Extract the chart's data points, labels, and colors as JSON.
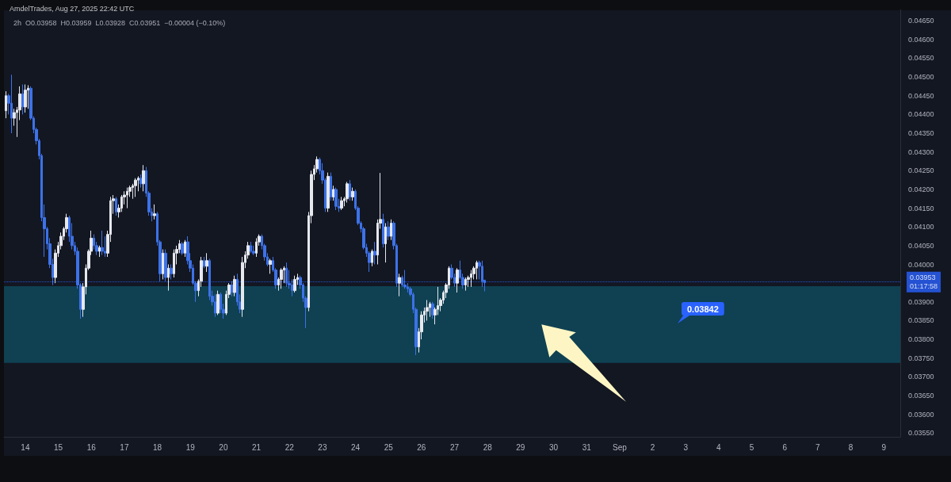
{
  "chart_data": {
    "type": "candlestick",
    "title": "AmdelTrades, Aug 27, 2025 22:42 UTC",
    "subtitle": "2h  O0.03958  H0.03959  L0.03928  C0.03951  −0.00004 (−0.10%)",
    "x": [
      "2025-08-13T10:00",
      "2025-08-13T12:00",
      "2025-08-13T14:00",
      "2025-08-13T16:00",
      "2025-08-13T18:00",
      "2025-08-13T20:00",
      "2025-08-13T22:00",
      "2025-08-14T00:00",
      "2025-08-14T02:00",
      "2025-08-14T04:00",
      "2025-08-14T06:00",
      "2025-08-14T08:00",
      "2025-08-14T10:00",
      "2025-08-14T12:00",
      "2025-08-14T14:00",
      "2025-08-14T16:00",
      "2025-08-14T18:00",
      "2025-08-14T20:00",
      "2025-08-14T22:00",
      "2025-08-15T00:00",
      "2025-08-15T02:00",
      "2025-08-15T04:00",
      "2025-08-15T06:00",
      "2025-08-15T08:00",
      "2025-08-15T10:00",
      "2025-08-15T12:00",
      "2025-08-15T14:00",
      "2025-08-15T16:00",
      "2025-08-15T18:00",
      "2025-08-15T20:00",
      "2025-08-15T22:00",
      "2025-08-16T00:00",
      "2025-08-16T02:00",
      "2025-08-16T04:00",
      "2025-08-16T06:00",
      "2025-08-16T08:00",
      "2025-08-16T10:00",
      "2025-08-16T12:00",
      "2025-08-16T14:00",
      "2025-08-16T16:00",
      "2025-08-16T18:00",
      "2025-08-16T20:00",
      "2025-08-16T22:00",
      "2025-08-17T00:00",
      "2025-08-17T02:00",
      "2025-08-17T04:00",
      "2025-08-17T06:00",
      "2025-08-17T08:00",
      "2025-08-17T10:00",
      "2025-08-17T12:00",
      "2025-08-17T14:00",
      "2025-08-17T16:00",
      "2025-08-17T18:00",
      "2025-08-17T20:00",
      "2025-08-17T22:00",
      "2025-08-18T00:00",
      "2025-08-18T02:00",
      "2025-08-18T04:00",
      "2025-08-18T06:00",
      "2025-08-18T08:00",
      "2025-08-18T10:00",
      "2025-08-18T12:00",
      "2025-08-18T14:00",
      "2025-08-18T16:00",
      "2025-08-18T18:00",
      "2025-08-18T20:00",
      "2025-08-18T22:00",
      "2025-08-19T00:00",
      "2025-08-19T02:00",
      "2025-08-19T04:00",
      "2025-08-19T06:00",
      "2025-08-19T08:00",
      "2025-08-19T10:00",
      "2025-08-19T12:00",
      "2025-08-19T14:00",
      "2025-08-19T16:00",
      "2025-08-19T18:00",
      "2025-08-19T20:00",
      "2025-08-19T22:00",
      "2025-08-20T00:00",
      "2025-08-20T02:00",
      "2025-08-20T04:00",
      "2025-08-20T06:00",
      "2025-08-20T08:00",
      "2025-08-20T10:00",
      "2025-08-20T12:00",
      "2025-08-20T14:00",
      "2025-08-20T16:00",
      "2025-08-20T18:00",
      "2025-08-20T20:00",
      "2025-08-20T22:00",
      "2025-08-21T00:00",
      "2025-08-21T02:00",
      "2025-08-21T04:00",
      "2025-08-21T06:00",
      "2025-08-21T08:00",
      "2025-08-21T10:00",
      "2025-08-21T12:00",
      "2025-08-21T14:00",
      "2025-08-21T16:00",
      "2025-08-21T18:00",
      "2025-08-21T20:00",
      "2025-08-21T22:00",
      "2025-08-22T00:00",
      "2025-08-22T02:00",
      "2025-08-22T04:00",
      "2025-08-22T06:00",
      "2025-08-22T08:00",
      "2025-08-22T10:00",
      "2025-08-22T12:00",
      "2025-08-22T14:00",
      "2025-08-22T16:00",
      "2025-08-22T18:00",
      "2025-08-22T20:00",
      "2025-08-22T22:00",
      "2025-08-23T00:00",
      "2025-08-23T02:00",
      "2025-08-23T04:00",
      "2025-08-23T06:00",
      "2025-08-23T08:00",
      "2025-08-23T10:00",
      "2025-08-23T12:00",
      "2025-08-23T14:00",
      "2025-08-23T16:00",
      "2025-08-23T18:00",
      "2025-08-23T20:00",
      "2025-08-23T22:00",
      "2025-08-24T00:00",
      "2025-08-24T02:00",
      "2025-08-24T04:00",
      "2025-08-24T06:00",
      "2025-08-24T08:00",
      "2025-08-24T10:00",
      "2025-08-24T12:00",
      "2025-08-24T14:00",
      "2025-08-24T16:00",
      "2025-08-24T18:00",
      "2025-08-24T20:00",
      "2025-08-24T22:00",
      "2025-08-25T00:00",
      "2025-08-25T02:00",
      "2025-08-25T04:00",
      "2025-08-25T06:00",
      "2025-08-25T08:00",
      "2025-08-25T10:00",
      "2025-08-25T12:00",
      "2025-08-25T14:00",
      "2025-08-25T16:00",
      "2025-08-25T18:00",
      "2025-08-25T20:00",
      "2025-08-25T22:00",
      "2025-08-26T00:00",
      "2025-08-26T02:00",
      "2025-08-26T04:00",
      "2025-08-26T06:00",
      "2025-08-26T08:00",
      "2025-08-26T10:00",
      "2025-08-26T12:00",
      "2025-08-26T14:00",
      "2025-08-26T16:00",
      "2025-08-26T18:00",
      "2025-08-26T20:00",
      "2025-08-26T22:00",
      "2025-08-27T00:00",
      "2025-08-27T02:00",
      "2025-08-27T04:00",
      "2025-08-27T06:00",
      "2025-08-27T08:00",
      "2025-08-27T10:00",
      "2025-08-27T12:00",
      "2025-08-27T14:00",
      "2025-08-27T16:00",
      "2025-08-27T18:00",
      "2025-08-27T20:00",
      "2025-08-27T22:00"
    ],
    "ohlc": [
      [
        0.0441,
        0.04462,
        0.0439,
        0.0445
      ],
      [
        0.0445,
        0.04455,
        0.044,
        0.0443
      ],
      [
        0.0443,
        0.04506,
        0.0435,
        0.0439
      ],
      [
        0.0439,
        0.04415,
        0.0437,
        0.04405
      ],
      [
        0.04405,
        0.0442,
        0.0434,
        0.04412
      ],
      [
        0.04412,
        0.04475,
        0.04385,
        0.04455
      ],
      [
        0.04455,
        0.0448,
        0.044,
        0.0442
      ],
      [
        0.0442,
        0.0448,
        0.04405,
        0.04465
      ],
      [
        0.04465,
        0.04478,
        0.04415,
        0.0447
      ],
      [
        0.0447,
        0.04475,
        0.04385,
        0.0439
      ],
      [
        0.0439,
        0.04395,
        0.0435,
        0.0436
      ],
      [
        0.0436,
        0.04365,
        0.0432,
        0.0433
      ],
      [
        0.0433,
        0.04335,
        0.0428,
        0.0429
      ],
      [
        0.0429,
        0.04295,
        0.04115,
        0.04125
      ],
      [
        0.04125,
        0.0416,
        0.0402,
        0.04095
      ],
      [
        0.04095,
        0.041,
        0.0404,
        0.04055
      ],
      [
        0.04055,
        0.0407,
        0.0399,
        0.04
      ],
      [
        0.04,
        0.04015,
        0.03945,
        0.03965
      ],
      [
        0.03965,
        0.0404,
        0.0395,
        0.0403
      ],
      [
        0.0403,
        0.0406,
        0.0402,
        0.0405
      ],
      [
        0.0405,
        0.04085,
        0.0404,
        0.04075
      ],
      [
        0.04075,
        0.041,
        0.04065,
        0.04095
      ],
      [
        0.04095,
        0.04135,
        0.04085,
        0.04125
      ],
      [
        0.04125,
        0.0413,
        0.0406,
        0.04075
      ],
      [
        0.04075,
        0.0411,
        0.0404,
        0.0405
      ],
      [
        0.0405,
        0.0406,
        0.04025,
        0.04035
      ],
      [
        0.04035,
        0.04045,
        0.03935,
        0.03945
      ],
      [
        0.03945,
        0.0395,
        0.03855,
        0.0388
      ],
      [
        0.0388,
        0.0395,
        0.0386,
        0.0394
      ],
      [
        0.0394,
        0.04,
        0.0392,
        0.0399
      ],
      [
        0.0399,
        0.0404,
        0.03985,
        0.04035
      ],
      [
        0.04035,
        0.0409,
        0.04025,
        0.0407
      ],
      [
        0.0407,
        0.0408,
        0.0404,
        0.0405
      ],
      [
        0.0405,
        0.0406,
        0.04025,
        0.04035
      ],
      [
        0.04035,
        0.0405,
        0.0402,
        0.04045
      ],
      [
        0.04045,
        0.0409,
        0.04025,
        0.04035
      ],
      [
        0.04035,
        0.04075,
        0.0402,
        0.0403
      ],
      [
        0.0403,
        0.0409,
        0.0402,
        0.0408
      ],
      [
        0.0408,
        0.0418,
        0.0406,
        0.0417
      ],
      [
        0.0417,
        0.04185,
        0.04135,
        0.04175
      ],
      [
        0.04175,
        0.0418,
        0.0413,
        0.0414
      ],
      [
        0.0414,
        0.0416,
        0.04125,
        0.0415
      ],
      [
        0.0415,
        0.04185,
        0.0414,
        0.0418
      ],
      [
        0.0418,
        0.04195,
        0.0416,
        0.04185
      ],
      [
        0.04185,
        0.04205,
        0.0415,
        0.04195
      ],
      [
        0.04195,
        0.0421,
        0.0418,
        0.04205
      ],
      [
        0.04205,
        0.04215,
        0.04175,
        0.0421
      ],
      [
        0.0421,
        0.0423,
        0.0418,
        0.04225
      ],
      [
        0.04225,
        0.04235,
        0.04195,
        0.0423
      ],
      [
        0.0423,
        0.0424,
        0.04205,
        0.04215
      ],
      [
        0.04215,
        0.04265,
        0.04195,
        0.0425
      ],
      [
        0.0425,
        0.0426,
        0.0418,
        0.0419
      ],
      [
        0.0419,
        0.04195,
        0.0413,
        0.0414
      ],
      [
        0.0414,
        0.0415,
        0.04115,
        0.0413
      ],
      [
        0.0413,
        0.0416,
        0.0412,
        0.04135
      ],
      [
        0.04135,
        0.0414,
        0.0405,
        0.0406
      ],
      [
        0.0406,
        0.04065,
        0.03955,
        0.03975
      ],
      [
        0.03975,
        0.0404,
        0.0396,
        0.0403
      ],
      [
        0.0403,
        0.0404,
        0.03955,
        0.03965
      ],
      [
        0.03965,
        0.04,
        0.0393,
        0.0399
      ],
      [
        0.0399,
        0.04,
        0.0396,
        0.03975
      ],
      [
        0.03975,
        0.0404,
        0.03965,
        0.0403
      ],
      [
        0.0403,
        0.0405,
        0.04,
        0.0404
      ],
      [
        0.0404,
        0.04065,
        0.0403,
        0.04055
      ],
      [
        0.04055,
        0.0406,
        0.04025,
        0.0403
      ],
      [
        0.0403,
        0.04065,
        0.0402,
        0.0406
      ],
      [
        0.0406,
        0.04075,
        0.04,
        0.0401
      ],
      [
        0.0401,
        0.0403,
        0.0398,
        0.0399
      ],
      [
        0.0399,
        0.04,
        0.03945,
        0.0395
      ],
      [
        0.0395,
        0.03955,
        0.039,
        0.0393
      ],
      [
        0.0393,
        0.0396,
        0.03915,
        0.03955
      ],
      [
        0.03955,
        0.0402,
        0.0394,
        0.0401
      ],
      [
        0.0401,
        0.0402,
        0.0399,
        0.03995
      ],
      [
        0.03995,
        0.0403,
        0.0398,
        0.0401
      ],
      [
        0.0401,
        0.04015,
        0.03905,
        0.03915
      ],
      [
        0.03915,
        0.0393,
        0.0389,
        0.039
      ],
      [
        0.039,
        0.0392,
        0.0386,
        0.0387
      ],
      [
        0.0387,
        0.0393,
        0.03865,
        0.0392
      ],
      [
        0.0392,
        0.03925,
        0.0387,
        0.0388
      ],
      [
        0.0388,
        0.03895,
        0.03855,
        0.0387
      ],
      [
        0.0387,
        0.0393,
        0.03865,
        0.0392
      ],
      [
        0.0392,
        0.0395,
        0.0391,
        0.03945
      ],
      [
        0.03945,
        0.03955,
        0.03915,
        0.03925
      ],
      [
        0.03925,
        0.0397,
        0.03915,
        0.0396
      ],
      [
        0.0396,
        0.03975,
        0.0389,
        0.039
      ],
      [
        0.039,
        0.0392,
        0.0387,
        0.0388
      ],
      [
        0.0388,
        0.0402,
        0.0386,
        0.04005
      ],
      [
        0.04005,
        0.04035,
        0.0399,
        0.04025
      ],
      [
        0.04025,
        0.0406,
        0.04015,
        0.0405
      ],
      [
        0.0405,
        0.0406,
        0.0403,
        0.04035
      ],
      [
        0.04035,
        0.0405,
        0.04025,
        0.0403
      ],
      [
        0.0403,
        0.0407,
        0.0402,
        0.0406
      ],
      [
        0.0406,
        0.0408,
        0.0405,
        0.04075
      ],
      [
        0.04075,
        0.0408,
        0.0404,
        0.0405
      ],
      [
        0.0405,
        0.04055,
        0.0401,
        0.0402
      ],
      [
        0.0402,
        0.0403,
        0.03995,
        0.04
      ],
      [
        0.04,
        0.04015,
        0.03975,
        0.0401
      ],
      [
        0.0401,
        0.0402,
        0.0398,
        0.03985
      ],
      [
        0.03985,
        0.0399,
        0.03935,
        0.03945
      ],
      [
        0.03945,
        0.03965,
        0.0393,
        0.0396
      ],
      [
        0.0396,
        0.0399,
        0.03935,
        0.03985
      ],
      [
        0.03985,
        0.03995,
        0.0395,
        0.0399
      ],
      [
        0.0399,
        0.04005,
        0.0394,
        0.0395
      ],
      [
        0.0395,
        0.03985,
        0.03935,
        0.03945
      ],
      [
        0.03945,
        0.0396,
        0.03915,
        0.0393
      ],
      [
        0.0393,
        0.0397,
        0.03925,
        0.0396
      ],
      [
        0.0396,
        0.03975,
        0.03945,
        0.03965
      ],
      [
        0.03965,
        0.0397,
        0.03935,
        0.03945
      ],
      [
        0.03945,
        0.0395,
        0.039,
        0.0391
      ],
      [
        0.0391,
        0.03915,
        0.0383,
        0.03885
      ],
      [
        0.03885,
        0.0414,
        0.03875,
        0.0413
      ],
      [
        0.0413,
        0.0425,
        0.0411,
        0.0424
      ],
      [
        0.0424,
        0.04265,
        0.04225,
        0.04255
      ],
      [
        0.04255,
        0.04288,
        0.04245,
        0.0428
      ],
      [
        0.0428,
        0.04285,
        0.0424,
        0.0425
      ],
      [
        0.0425,
        0.0427,
        0.04215,
        0.04225
      ],
      [
        0.04225,
        0.0423,
        0.0414,
        0.0415
      ],
      [
        0.0415,
        0.04245,
        0.0414,
        0.04235
      ],
      [
        0.04235,
        0.04245,
        0.0417,
        0.0418
      ],
      [
        0.0418,
        0.0421,
        0.0417,
        0.042
      ],
      [
        0.042,
        0.04205,
        0.04145,
        0.04155
      ],
      [
        0.04155,
        0.04175,
        0.0414,
        0.0415
      ],
      [
        0.0415,
        0.0418,
        0.04145,
        0.0417
      ],
      [
        0.0417,
        0.0418,
        0.04155,
        0.04175
      ],
      [
        0.04175,
        0.0422,
        0.04165,
        0.04215
      ],
      [
        0.04215,
        0.04225,
        0.0417,
        0.0418
      ],
      [
        0.0418,
        0.04205,
        0.0417,
        0.04195
      ],
      [
        0.04195,
        0.042,
        0.04145,
        0.0415
      ],
      [
        0.0415,
        0.04155,
        0.04105,
        0.0411
      ],
      [
        0.0411,
        0.04115,
        0.04085,
        0.04095
      ],
      [
        0.04095,
        0.041,
        0.0404,
        0.04045
      ],
      [
        0.04045,
        0.04055,
        0.0402,
        0.0403
      ],
      [
        0.0403,
        0.04035,
        0.0398,
        0.04005
      ],
      [
        0.04005,
        0.0404,
        0.03995,
        0.04035
      ],
      [
        0.04035,
        0.0406,
        0.04,
        0.04025
      ],
      [
        0.04025,
        0.0412,
        0.04,
        0.0411
      ],
      [
        0.0411,
        0.04244,
        0.04095,
        0.0412
      ],
      [
        0.0412,
        0.04135,
        0.04045,
        0.04055
      ],
      [
        0.04055,
        0.0411,
        0.04005,
        0.041
      ],
      [
        0.041,
        0.04115,
        0.04065,
        0.04075
      ],
      [
        0.04075,
        0.0412,
        0.04065,
        0.0411
      ],
      [
        0.0411,
        0.04115,
        0.0404,
        0.0405
      ],
      [
        0.0405,
        0.04055,
        0.0394,
        0.0395
      ],
      [
        0.0395,
        0.03975,
        0.03915,
        0.03965
      ],
      [
        0.03965,
        0.0397,
        0.0394,
        0.03945
      ],
      [
        0.03945,
        0.03985,
        0.03935,
        0.0394
      ],
      [
        0.0394,
        0.0395,
        0.03925,
        0.03935
      ],
      [
        0.03935,
        0.0394,
        0.03915,
        0.0392
      ],
      [
        0.0392,
        0.03925,
        0.0387,
        0.0388
      ],
      [
        0.0388,
        0.03885,
        0.03758,
        0.0378
      ],
      [
        0.0378,
        0.0383,
        0.03765,
        0.0382
      ],
      [
        0.0382,
        0.03875,
        0.038,
        0.03865
      ],
      [
        0.03865,
        0.03885,
        0.03845,
        0.03875
      ],
      [
        0.03875,
        0.03905,
        0.0385,
        0.03885
      ],
      [
        0.03885,
        0.039,
        0.0386,
        0.03895
      ],
      [
        0.03895,
        0.039,
        0.03855,
        0.03865
      ],
      [
        0.03865,
        0.03885,
        0.0384,
        0.0388
      ],
      [
        0.0388,
        0.0394,
        0.03865,
        0.0389
      ],
      [
        0.0389,
        0.0391,
        0.03875,
        0.03905
      ],
      [
        0.03905,
        0.0393,
        0.03895,
        0.03925
      ],
      [
        0.03925,
        0.0395,
        0.0391,
        0.03945
      ],
      [
        0.03945,
        0.03995,
        0.03935,
        0.0399
      ],
      [
        0.0399,
        0.04,
        0.0396,
        0.03965
      ],
      [
        0.03965,
        0.03975,
        0.0394,
        0.0395
      ],
      [
        0.0395,
        0.0399,
        0.03925,
        0.03985
      ],
      [
        0.03985,
        0.0401,
        0.0396,
        0.03965
      ],
      [
        0.03965,
        0.03975,
        0.03935,
        0.03945
      ],
      [
        0.03945,
        0.03965,
        0.0393,
        0.0396
      ],
      [
        0.0396,
        0.0397,
        0.0394,
        0.03965
      ],
      [
        0.03965,
        0.03985,
        0.0394,
        0.03975
      ],
      [
        0.03975,
        0.03995,
        0.0396,
        0.0399
      ],
      [
        0.0399,
        0.0401,
        0.0396,
        0.04005
      ],
      [
        0.04005,
        0.0401,
        0.0396,
        0.03995
      ],
      [
        0.03995,
        0.0401,
        0.0394,
        0.03955
      ],
      [
        0.03958,
        0.03959,
        0.03928,
        0.03951
      ]
    ],
    "colors": [
      "#e6e8ee",
      "#3d72e8",
      "#3d72e8",
      "#e6e8ee",
      "#e6e8ee",
      "#e6e8ee",
      "#3d72e8",
      "#e6e8ee",
      "#e6e8ee",
      "#3d72e8",
      "#3d72e8",
      "#3d72e8",
      "#3d72e8",
      "#3d72e8",
      "#3d72e8",
      "#3d72e8",
      "#3d72e8",
      "#3d72e8",
      "#e6e8ee",
      "#e6e8ee",
      "#e6e8ee",
      "#e6e8ee",
      "#e6e8ee",
      "#3d72e8",
      "#3d72e8",
      "#3d72e8",
      "#3d72e8",
      "#3d72e8",
      "#e6e8ee",
      "#e6e8ee",
      "#e6e8ee",
      "#e6e8ee",
      "#3d72e8",
      "#3d72e8",
      "#e6e8ee",
      "#3d72e8",
      "#3d72e8",
      "#e6e8ee",
      "#e6e8ee",
      "#e6e8ee",
      "#3d72e8",
      "#e6e8ee",
      "#e6e8ee",
      "#e6e8ee",
      "#e6e8ee",
      "#e6e8ee",
      "#e6e8ee",
      "#e6e8ee",
      "#e6e8ee",
      "#3d72e8",
      "#e6e8ee",
      "#3d72e8",
      "#3d72e8",
      "#3d72e8",
      "#e6e8ee",
      "#3d72e8",
      "#3d72e8",
      "#e6e8ee",
      "#3d72e8",
      "#e6e8ee",
      "#3d72e8",
      "#e6e8ee",
      "#e6e8ee",
      "#e6e8ee",
      "#3d72e8",
      "#e6e8ee",
      "#3d72e8",
      "#3d72e8",
      "#3d72e8",
      "#3d72e8",
      "#e6e8ee",
      "#e6e8ee",
      "#3d72e8",
      "#e6e8ee",
      "#3d72e8",
      "#3d72e8",
      "#3d72e8",
      "#e6e8ee",
      "#3d72e8",
      "#3d72e8",
      "#e6e8ee",
      "#e6e8ee",
      "#3d72e8",
      "#e6e8ee",
      "#3d72e8",
      "#3d72e8",
      "#e6e8ee",
      "#e6e8ee",
      "#e6e8ee",
      "#3d72e8",
      "#3d72e8",
      "#e6e8ee",
      "#e6e8ee",
      "#3d72e8",
      "#3d72e8",
      "#3d72e8",
      "#e6e8ee",
      "#3d72e8",
      "#3d72e8",
      "#e6e8ee",
      "#e6e8ee",
      "#e6e8ee",
      "#3d72e8",
      "#3d72e8",
      "#3d72e8",
      "#e6e8ee",
      "#e6e8ee",
      "#3d72e8",
      "#3d72e8",
      "#3d72e8",
      "#e6e8ee",
      "#e6e8ee",
      "#e6e8ee",
      "#e6e8ee",
      "#3d72e8",
      "#3d72e8",
      "#3d72e8",
      "#e6e8ee",
      "#3d72e8",
      "#e6e8ee",
      "#3d72e8",
      "#3d72e8",
      "#e6e8ee",
      "#e6e8ee",
      "#e6e8ee",
      "#3d72e8",
      "#e6e8ee",
      "#3d72e8",
      "#3d72e8",
      "#3d72e8",
      "#3d72e8",
      "#3d72e8",
      "#3d72e8",
      "#e6e8ee",
      "#3d72e8",
      "#e6e8ee",
      "#e6e8ee",
      "#3d72e8",
      "#e6e8ee",
      "#3d72e8",
      "#e6e8ee",
      "#3d72e8",
      "#3d72e8",
      "#e6e8ee",
      "#3d72e8",
      "#3d72e8",
      "#3d72e8",
      "#3d72e8",
      "#3d72e8",
      "#3d72e8",
      "#e6e8ee",
      "#e6e8ee",
      "#e6e8ee",
      "#e6e8ee",
      "#e6e8ee",
      "#3d72e8",
      "#e6e8ee",
      "#e6e8ee",
      "#e6e8ee",
      "#e6e8ee",
      "#e6e8ee",
      "#e6e8ee",
      "#3d72e8",
      "#3d72e8",
      "#e6e8ee",
      "#3d72e8",
      "#3d72e8",
      "#e6e8ee",
      "#e6e8ee",
      "#e6e8ee",
      "#e6e8ee",
      "#e6e8ee",
      "#3d72e8",
      "#3d72e8",
      "#3d72e8"
    ],
    "xlim": [
      "2025-08-13T08:30",
      "2025-09-09T12:00"
    ],
    "xticks": [
      {
        "value": "2025-08-14",
        "label": "14"
      },
      {
        "value": "2025-08-15",
        "label": "15"
      },
      {
        "value": "2025-08-16",
        "label": "16"
      },
      {
        "value": "2025-08-17",
        "label": "17"
      },
      {
        "value": "2025-08-18",
        "label": "18"
      },
      {
        "value": "2025-08-19",
        "label": "19"
      },
      {
        "value": "2025-08-20",
        "label": "20"
      },
      {
        "value": "2025-08-21",
        "label": "21"
      },
      {
        "value": "2025-08-22",
        "label": "22"
      },
      {
        "value": "2025-08-23",
        "label": "23"
      },
      {
        "value": "2025-08-24",
        "label": "24"
      },
      {
        "value": "2025-08-25",
        "label": "25"
      },
      {
        "value": "2025-08-26",
        "label": "26"
      },
      {
        "value": "2025-08-27",
        "label": "27"
      },
      {
        "value": "2025-08-28",
        "label": "28"
      },
      {
        "value": "2025-08-29",
        "label": "29"
      },
      {
        "value": "2025-08-30",
        "label": "30"
      },
      {
        "value": "2025-08-31",
        "label": "31"
      },
      {
        "value": "2025-09-01",
        "label": "Sep"
      },
      {
        "value": "2025-09-02",
        "label": "2"
      },
      {
        "value": "2025-09-03",
        "label": "3"
      },
      {
        "value": "2025-09-04",
        "label": "4"
      },
      {
        "value": "2025-09-05",
        "label": "5"
      },
      {
        "value": "2025-09-06",
        "label": "6"
      },
      {
        "value": "2025-09-07",
        "label": "7"
      },
      {
        "value": "2025-09-08",
        "label": "8"
      },
      {
        "value": "2025-09-09",
        "label": "9"
      }
    ],
    "ylim": [
      0.0354,
      0.0468
    ],
    "yticks": [
      {
        "value": 0.0355,
        "label": "0.03550"
      },
      {
        "value": 0.036,
        "label": "0.03600"
      },
      {
        "value": 0.0365,
        "label": "0.03650"
      },
      {
        "value": 0.037,
        "label": "0.03700"
      },
      {
        "value": 0.0375,
        "label": "0.03750"
      },
      {
        "value": 0.038,
        "label": "0.03800"
      },
      {
        "value": 0.0385,
        "label": "0.03850"
      },
      {
        "value": 0.039,
        "label": "0.03900"
      },
      {
        "value": 0.04,
        "label": "0.04000"
      },
      {
        "value": 0.0405,
        "label": "0.04050"
      },
      {
        "value": 0.041,
        "label": "0.04100"
      },
      {
        "value": 0.0415,
        "label": "0.04150"
      },
      {
        "value": 0.042,
        "label": "0.04200"
      },
      {
        "value": 0.0425,
        "label": "0.04250"
      },
      {
        "value": 0.043,
        "label": "0.04300"
      },
      {
        "value": 0.0435,
        "label": "0.04350"
      },
      {
        "value": 0.044,
        "label": "0.04400"
      },
      {
        "value": 0.0445,
        "label": "0.04450"
      },
      {
        "value": 0.045,
        "label": "0.04500"
      },
      {
        "value": 0.0455,
        "label": "0.04550"
      },
      {
        "value": 0.046,
        "label": "0.04600"
      },
      {
        "value": 0.0465,
        "label": "0.04650"
      }
    ],
    "bands": [
      {
        "axis": "y",
        "from": 0.03737,
        "to": 0.03942,
        "color": "#0f4152"
      }
    ],
    "ref_lines": [
      {
        "axis": "y",
        "value": 0.03953,
        "label": "0.03953\n01:17:58",
        "color": "#2962ff",
        "line_style": "dotted"
      }
    ],
    "annotations": [
      "0.03842"
    ]
  }
}
